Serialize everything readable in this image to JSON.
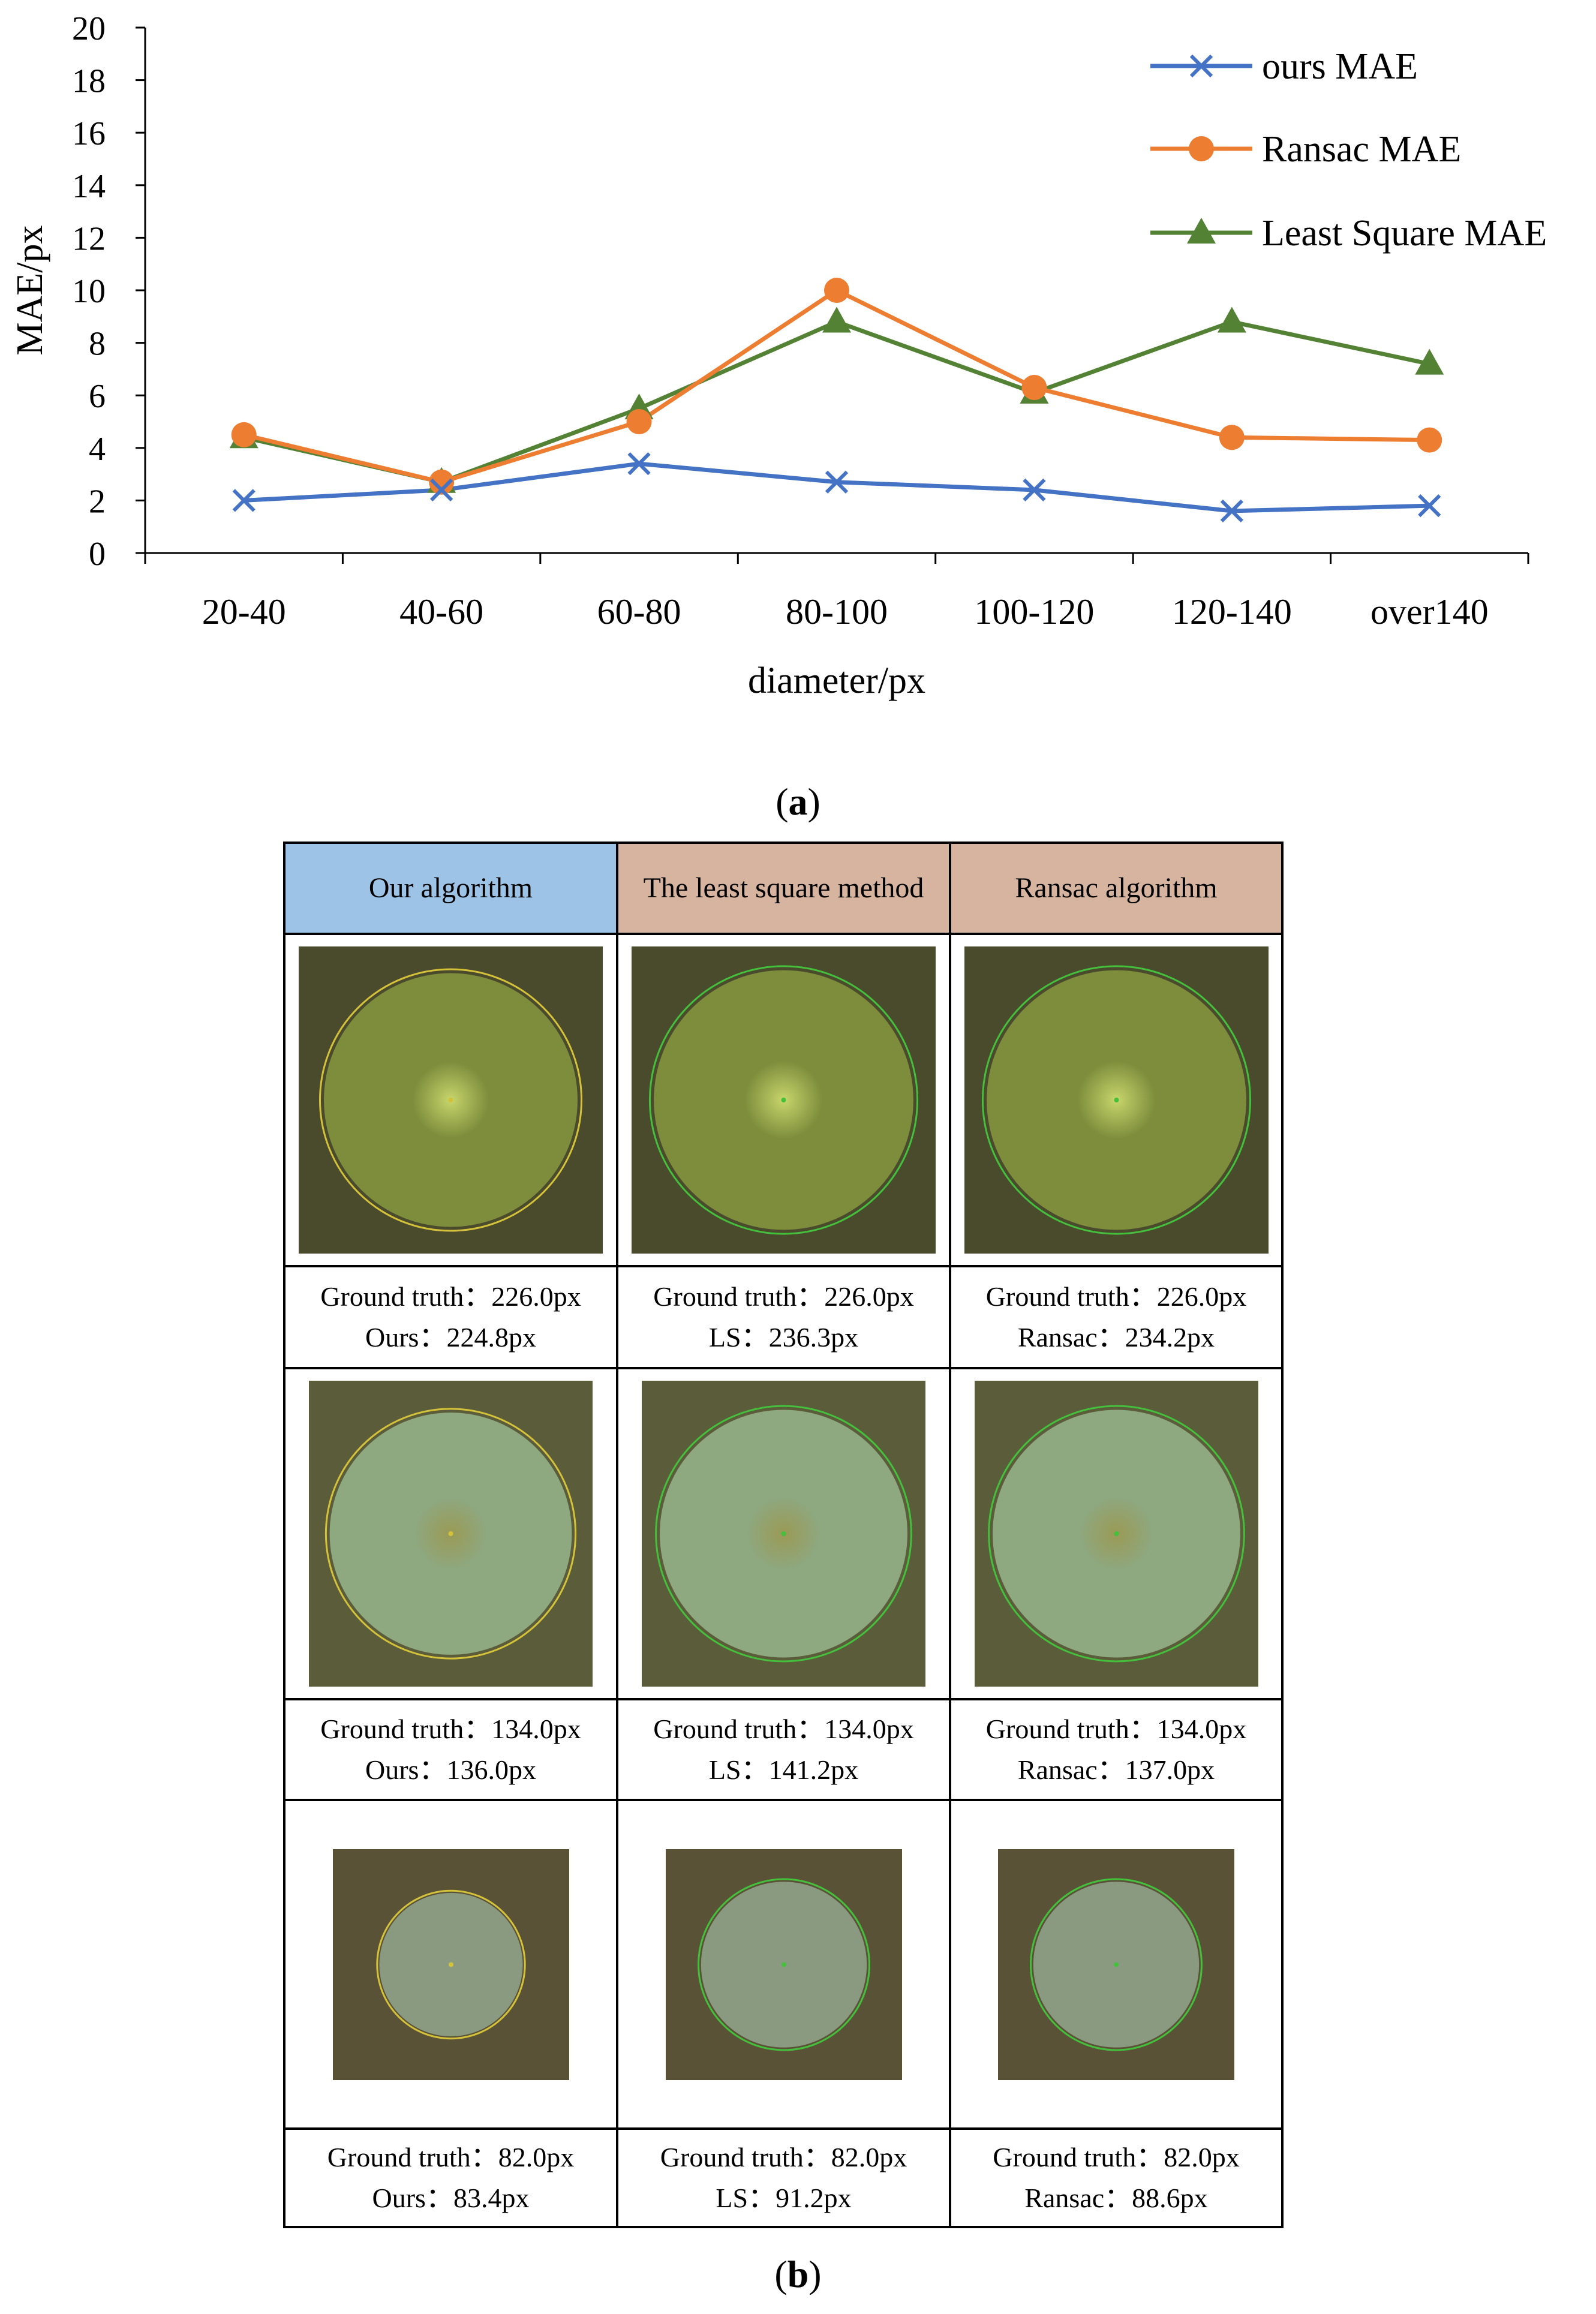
{
  "chart_data": {
    "type": "line",
    "categories": [
      "20-40",
      "40-60",
      "60-80",
      "80-100",
      "100-120",
      "120-140",
      "over140"
    ],
    "series": [
      {
        "name": "ours MAE",
        "values": [
          2.0,
          2.4,
          3.4,
          2.7,
          2.4,
          1.6,
          1.8
        ],
        "color": "#4472c4",
        "marker": "x"
      },
      {
        "name": "Ransac MAE",
        "values": [
          4.5,
          2.7,
          5.0,
          10.0,
          6.3,
          4.4,
          4.3
        ],
        "color": "#ed7d31",
        "marker": "circle"
      },
      {
        "name": "Least Square MAE",
        "values": [
          4.4,
          2.7,
          5.5,
          8.8,
          6.1,
          8.8,
          7.2
        ],
        "color": "#548235",
        "marker": "triangle"
      }
    ],
    "yticks": [
      "0",
      "2",
      "4",
      "6",
      "8",
      "10",
      "12",
      "14",
      "16",
      "18",
      "20"
    ],
    "ylim": [
      0,
      20
    ],
    "xlabel": "diameter/px",
    "ylabel": "MAE/px",
    "legend_position": "top-right",
    "grid": false
  },
  "captions": {
    "a_label": "a",
    "b_label": "b"
  },
  "table": {
    "headers": [
      "Our algorithm",
      "The least square method",
      "Ransac algorithm"
    ],
    "rows": [
      {
        "ring_colors": [
          "#d4c23a",
          "#44c03c",
          "#44c03c"
        ],
        "captions": [
          [
            "Ground truth：226.0px",
            "Ours：224.8px"
          ],
          [
            "Ground truth：226.0px",
            "LS：236.3px"
          ],
          [
            "Ground truth：226.0px",
            "Ransac：234.2px"
          ]
        ]
      },
      {
        "ring_colors": [
          "#d4c23a",
          "#44c03c",
          "#44c03c"
        ],
        "captions": [
          [
            "Ground truth：134.0px",
            "Ours：136.0px"
          ],
          [
            "Ground truth：134.0px",
            "LS：141.2px"
          ],
          [
            "Ground truth：134.0px",
            "Ransac：137.0px"
          ]
        ]
      },
      {
        "ring_colors": [
          "#d4c23a",
          "#44c03c",
          "#44c03c"
        ],
        "captions": [
          [
            "Ground truth：82.0px",
            "Ours：83.4px"
          ],
          [
            "Ground truth：82.0px",
            "LS：91.2px"
          ],
          [
            "Ground truth：82.0px",
            "Ransac：88.6px"
          ]
        ]
      }
    ]
  }
}
